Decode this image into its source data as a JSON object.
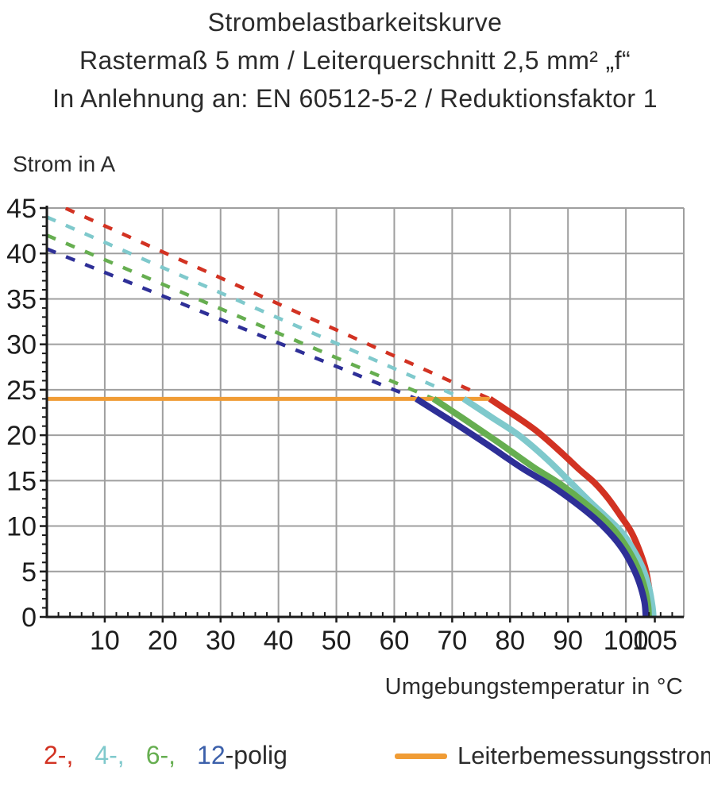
{
  "title": {
    "line1": "Strombelastbarkeitskurve",
    "line2": "Rastermaß 5 mm / Leiterquerschnitt 2,5 mm² „f“",
    "line3": "In Anlehnung an: EN 60512-5-2 / Reduktionsfaktor 1"
  },
  "legend": {
    "pole_items": [
      {
        "text": "2-,",
        "color": "#d23222"
      },
      {
        "text": "4-,",
        "color": "#7fc9cc"
      },
      {
        "text": "6-,",
        "color": "#66ae50"
      },
      {
        "text": "12",
        "color": "#3c60aa"
      },
      {
        "text": "-polig",
        "color": "#2b2b2b"
      }
    ],
    "rated_current_label": "Leiterbemessungsstrom",
    "rated_current_color": "#f09c35"
  },
  "chart_data": {
    "type": "line",
    "title": "Strombelastbarkeitskurve",
    "xlabel": "Umgebungstemperatur in °C",
    "ylabel": "Strom in A",
    "x_axis": {
      "min": 0,
      "max": 110,
      "gridline_step": 10,
      "minor_tick_step": 2,
      "tick_labels": [
        10,
        20,
        30,
        40,
        50,
        60,
        70,
        80,
        90,
        100,
        105
      ]
    },
    "y_axis": {
      "min": 0,
      "max": 45,
      "gridline_step": 5,
      "minor_tick_step": 1,
      "tick_labels": [
        0,
        5,
        10,
        15,
        20,
        25,
        30,
        35,
        40,
        45
      ]
    },
    "grid_color": "#9f9f9f",
    "axis_color": "#1a1a1a",
    "rated_current_line": {
      "label": "Leiterbemessungsstrom",
      "current_a": 24,
      "temp_start_c": 0,
      "temp_end_c": 76.5,
      "color": "#f09c35"
    },
    "series": [
      {
        "name": "2-polig",
        "color": "#d23222",
        "dashed_segment": [
          [
            0,
            45.9
          ],
          [
            76.5,
            24
          ]
        ],
        "solid_points": [
          [
            76.5,
            24
          ],
          [
            80.5,
            22.3
          ],
          [
            84.5,
            20.5
          ],
          [
            88.5,
            18.3
          ],
          [
            92,
            16.2
          ],
          [
            94.7,
            14.7
          ],
          [
            97,
            13
          ],
          [
            99,
            11.2
          ],
          [
            100.8,
            9.5
          ],
          [
            102.1,
            7.7
          ],
          [
            103.3,
            5.5
          ],
          [
            104,
            3.2
          ],
          [
            104.35,
            1.0
          ],
          [
            104.45,
            0
          ]
        ]
      },
      {
        "name": "4-polig",
        "color": "#7fc9cc",
        "dashed_segment": [
          [
            0,
            44.0
          ],
          [
            72,
            24
          ]
        ],
        "solid_points": [
          [
            72,
            24
          ],
          [
            77,
            21.9
          ],
          [
            81.5,
            20.0
          ],
          [
            86.3,
            17.4
          ],
          [
            90.3,
            14.9
          ],
          [
            93.6,
            12.8
          ],
          [
            96.6,
            11.0
          ],
          [
            99.3,
            9.3
          ],
          [
            101.2,
            7.5
          ],
          [
            102.9,
            5.4
          ],
          [
            104,
            3.2
          ],
          [
            104.6,
            1.1
          ],
          [
            104.75,
            0
          ]
        ]
      },
      {
        "name": "6-polig",
        "color": "#66ae50",
        "dashed_segment": [
          [
            0,
            42.0
          ],
          [
            66.8,
            24
          ]
        ],
        "solid_points": [
          [
            66.8,
            24
          ],
          [
            72,
            21.8
          ],
          [
            78,
            19.2
          ],
          [
            84,
            16.5
          ],
          [
            88.5,
            14.7
          ],
          [
            92.2,
            12.9
          ],
          [
            95.6,
            11.1
          ],
          [
            98.2,
            9.4
          ],
          [
            100.2,
            7.6
          ],
          [
            101.9,
            5.6
          ],
          [
            103.1,
            3.5
          ],
          [
            103.8,
            1.4
          ],
          [
            103.95,
            0
          ]
        ]
      },
      {
        "name": "12-polig",
        "color": "#2e2f97",
        "dashed_segment": [
          [
            0,
            40.5
          ],
          [
            63.8,
            24
          ]
        ],
        "solid_points": [
          [
            63.8,
            24
          ],
          [
            70,
            21.5
          ],
          [
            76,
            19.0
          ],
          [
            82,
            16.4
          ],
          [
            87,
            14.5
          ],
          [
            91.2,
            12.6
          ],
          [
            94.7,
            10.8
          ],
          [
            97.4,
            9.1
          ],
          [
            99.5,
            7.4
          ],
          [
            101.1,
            5.6
          ],
          [
            102.3,
            3.8
          ],
          [
            103.2,
            1.7
          ],
          [
            103.45,
            0
          ]
        ]
      }
    ]
  }
}
